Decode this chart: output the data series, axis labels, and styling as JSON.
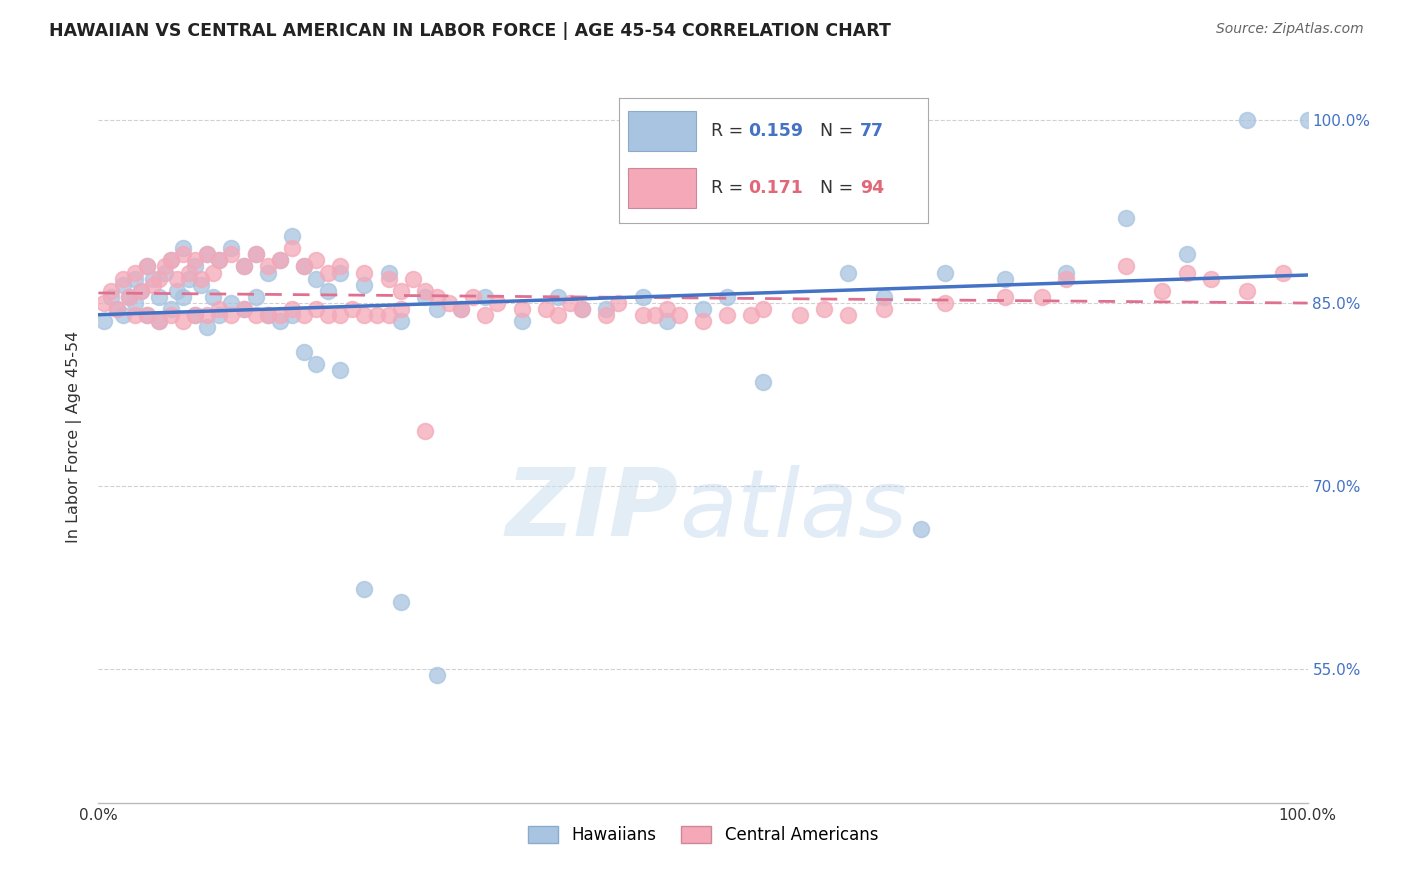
{
  "title": "HAWAIIAN VS CENTRAL AMERICAN IN LABOR FORCE | AGE 45-54 CORRELATION CHART",
  "source": "Source: ZipAtlas.com",
  "ylabel": "In Labor Force | Age 45-54",
  "ytick_labels": [
    "55.0%",
    "70.0%",
    "85.0%",
    "100.0%"
  ],
  "ytick_values": [
    0.55,
    0.7,
    0.85,
    1.0
  ],
  "xlim": [
    0.0,
    1.0
  ],
  "ylim": [
    0.44,
    1.04
  ],
  "legend_r1": "0.159",
  "legend_n1": "77",
  "legend_r2": "0.171",
  "legend_n2": "94",
  "color_hawaiian": "#a8c4e0",
  "color_central": "#f4a8b8",
  "color_blue_text": "#4472c4",
  "color_pink_text": "#e06878",
  "color_line_blue": "#4472c4",
  "color_line_pink": "#e07090",
  "hawaiian_x": [
    0.005,
    0.01,
    0.015,
    0.02,
    0.025,
    0.03,
    0.035,
    0.04,
    0.045,
    0.05,
    0.055,
    0.06,
    0.065,
    0.07,
    0.075,
    0.08,
    0.085,
    0.09,
    0.095,
    0.1,
    0.11,
    0.12,
    0.13,
    0.14,
    0.15,
    0.16,
    0.17,
    0.18,
    0.19,
    0.2,
    0.22,
    0.24,
    0.25,
    0.27,
    0.28,
    0.3,
    0.32,
    0.35,
    0.38,
    0.4,
    0.42,
    0.45,
    0.47,
    0.5,
    0.52,
    0.55,
    0.62,
    0.65,
    0.68,
    0.7,
    0.75,
    0.8,
    0.85,
    0.9,
    0.95,
    1.0,
    0.02,
    0.03,
    0.04,
    0.05,
    0.06,
    0.07,
    0.08,
    0.09,
    0.1,
    0.11,
    0.12,
    0.13,
    0.14,
    0.15,
    0.16,
    0.17,
    0.18,
    0.2,
    0.22,
    0.25,
    0.28
  ],
  "hawaiian_y": [
    0.835,
    0.855,
    0.845,
    0.865,
    0.855,
    0.87,
    0.86,
    0.88,
    0.87,
    0.855,
    0.875,
    0.885,
    0.86,
    0.895,
    0.87,
    0.88,
    0.865,
    0.89,
    0.855,
    0.885,
    0.895,
    0.88,
    0.89,
    0.875,
    0.885,
    0.905,
    0.88,
    0.87,
    0.86,
    0.875,
    0.865,
    0.875,
    0.835,
    0.855,
    0.845,
    0.845,
    0.855,
    0.835,
    0.855,
    0.845,
    0.845,
    0.855,
    0.835,
    0.845,
    0.855,
    0.785,
    0.875,
    0.855,
    0.665,
    0.875,
    0.87,
    0.875,
    0.92,
    0.89,
    1.0,
    1.0,
    0.84,
    0.85,
    0.84,
    0.835,
    0.845,
    0.855,
    0.84,
    0.83,
    0.84,
    0.85,
    0.845,
    0.855,
    0.84,
    0.835,
    0.84,
    0.81,
    0.8,
    0.795,
    0.615,
    0.605,
    0.545
  ],
  "central_x": [
    0.005,
    0.01,
    0.015,
    0.02,
    0.025,
    0.03,
    0.035,
    0.04,
    0.045,
    0.05,
    0.055,
    0.06,
    0.065,
    0.07,
    0.075,
    0.08,
    0.085,
    0.09,
    0.095,
    0.1,
    0.11,
    0.12,
    0.13,
    0.14,
    0.15,
    0.16,
    0.17,
    0.18,
    0.19,
    0.2,
    0.22,
    0.24,
    0.25,
    0.26,
    0.27,
    0.28,
    0.29,
    0.3,
    0.31,
    0.32,
    0.33,
    0.35,
    0.37,
    0.38,
    0.39,
    0.4,
    0.42,
    0.43,
    0.45,
    0.46,
    0.47,
    0.48,
    0.5,
    0.52,
    0.54,
    0.55,
    0.58,
    0.6,
    0.62,
    0.65,
    0.7,
    0.75,
    0.78,
    0.8,
    0.85,
    0.88,
    0.9,
    0.92,
    0.95,
    0.98,
    0.03,
    0.04,
    0.05,
    0.06,
    0.07,
    0.08,
    0.09,
    0.1,
    0.11,
    0.12,
    0.13,
    0.14,
    0.15,
    0.16,
    0.17,
    0.18,
    0.19,
    0.2,
    0.21,
    0.22,
    0.23,
    0.24,
    0.25,
    0.27
  ],
  "central_y": [
    0.85,
    0.86,
    0.845,
    0.87,
    0.855,
    0.875,
    0.86,
    0.88,
    0.865,
    0.87,
    0.88,
    0.885,
    0.87,
    0.89,
    0.875,
    0.885,
    0.87,
    0.89,
    0.875,
    0.885,
    0.89,
    0.88,
    0.89,
    0.88,
    0.885,
    0.895,
    0.88,
    0.885,
    0.875,
    0.88,
    0.875,
    0.87,
    0.86,
    0.87,
    0.86,
    0.855,
    0.85,
    0.845,
    0.855,
    0.84,
    0.85,
    0.845,
    0.845,
    0.84,
    0.85,
    0.845,
    0.84,
    0.85,
    0.84,
    0.84,
    0.845,
    0.84,
    0.835,
    0.84,
    0.84,
    0.845,
    0.84,
    0.845,
    0.84,
    0.845,
    0.85,
    0.855,
    0.855,
    0.87,
    0.88,
    0.86,
    0.875,
    0.87,
    0.86,
    0.875,
    0.84,
    0.84,
    0.835,
    0.84,
    0.835,
    0.84,
    0.84,
    0.845,
    0.84,
    0.845,
    0.84,
    0.84,
    0.84,
    0.845,
    0.84,
    0.845,
    0.84,
    0.84,
    0.845,
    0.84,
    0.84,
    0.84,
    0.845,
    0.745
  ]
}
